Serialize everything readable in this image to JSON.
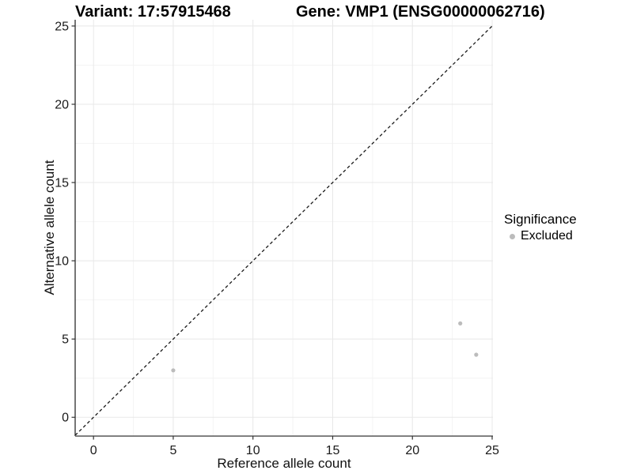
{
  "figure": {
    "title_left": "Variant: 17:57915468",
    "title_right": "Gene: VMP1 (ENSG00000062716)"
  },
  "legend": {
    "title": "Significance",
    "items": [
      {
        "label": "Excluded",
        "color": "#bcbcbc"
      }
    ]
  },
  "chart_data": {
    "type": "scatter",
    "title": "Variant: 17:57915468 | Gene: VMP1 (ENSG00000062716)",
    "xlabel": "Reference allele count",
    "ylabel": "Alternative allele count",
    "x_ticks": [
      0,
      5,
      10,
      15,
      20,
      25
    ],
    "y_ticks": [
      0,
      5,
      10,
      15,
      20,
      25
    ],
    "xlim": [
      -1.15,
      25.05
    ],
    "ylim": [
      -1.2,
      25.4
    ],
    "grid": "major+minor",
    "legend_position": "right",
    "series": [
      {
        "name": "Excluded",
        "color": "#bcbcbc",
        "points": [
          [
            5,
            3
          ],
          [
            23,
            6
          ],
          [
            24,
            4
          ]
        ]
      }
    ],
    "reference_line": {
      "type": "identity",
      "style": "dashed",
      "color": "#1a1a1a"
    }
  },
  "style": {
    "background": "#ffffff",
    "grid_major": "#e8e8e8",
    "grid_minor": "#f4f4f4",
    "axis_line_left": "#1a1a1a",
    "axis_line_bottom": "#6e6e6e",
    "tick_color": "#333333",
    "tick_label_color": "#1a1a1a",
    "point_radius": 2.6
  }
}
